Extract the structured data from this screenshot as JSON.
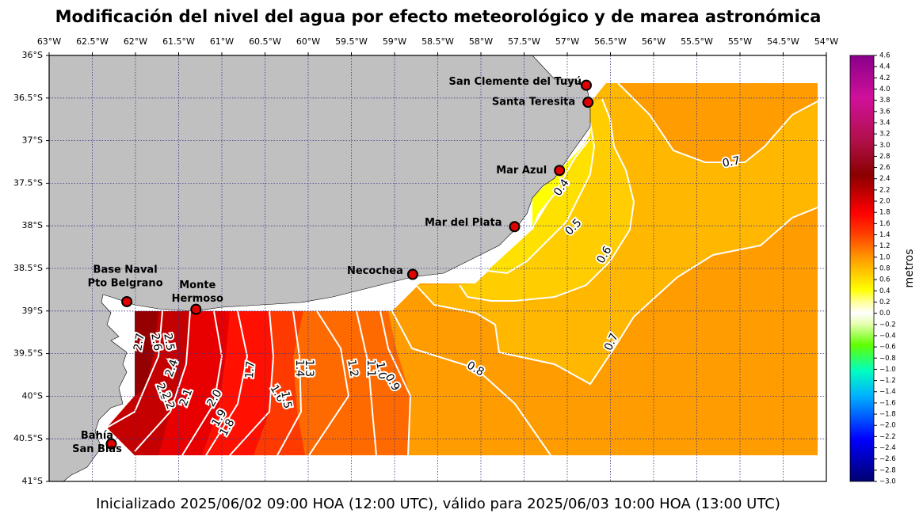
{
  "title": "Modificación del nivel del agua por efecto meteorológico y de marea astronómica",
  "footer": "Inicializado 2025/06/02 09:00 HOA (12:00 UTC), válido para 2025/06/03 10:00 HOA (13:00 UTC)",
  "map": {
    "xlim": [
      -63,
      -54
    ],
    "ylim": [
      -41,
      -36
    ],
    "xticks": [
      {
        "value": -63,
        "label": "63°W"
      },
      {
        "value": -62.5,
        "label": "62.5°W"
      },
      {
        "value": -62,
        "label": "62°W"
      },
      {
        "value": -61.5,
        "label": "61.5°W"
      },
      {
        "value": -61,
        "label": "61°W"
      },
      {
        "value": -60.5,
        "label": "60.5°W"
      },
      {
        "value": -60,
        "label": "60°W"
      },
      {
        "value": -59.5,
        "label": "59.5°W"
      },
      {
        "value": -59,
        "label": "59°W"
      },
      {
        "value": -58.5,
        "label": "58.5°W"
      },
      {
        "value": -58,
        "label": "58°W"
      },
      {
        "value": -57.5,
        "label": "57.5°W"
      },
      {
        "value": -57,
        "label": "57°W"
      },
      {
        "value": -56.5,
        "label": "56.5°W"
      },
      {
        "value": -56,
        "label": "56°W"
      },
      {
        "value": -55.5,
        "label": "55.5°W"
      },
      {
        "value": -55,
        "label": "55°W"
      },
      {
        "value": -54.5,
        "label": "54.5°W"
      },
      {
        "value": -54,
        "label": "54°W"
      }
    ],
    "yticks": [
      {
        "value": -36,
        "label": "36°S"
      },
      {
        "value": -36.5,
        "label": "36.5°S"
      },
      {
        "value": -37,
        "label": "37°S"
      },
      {
        "value": -37.5,
        "label": "37.5°S"
      },
      {
        "value": -38,
        "label": "38°S"
      },
      {
        "value": -38.5,
        "label": "38.5°S"
      },
      {
        "value": -39,
        "label": "39°S"
      },
      {
        "value": -39.5,
        "label": "39.5°S"
      },
      {
        "value": -40,
        "label": "40°S"
      },
      {
        "value": -40.5,
        "label": "40.5°S"
      },
      {
        "value": -41,
        "label": "41°S"
      }
    ],
    "grid": true,
    "cities": [
      {
        "name": [
          "San Clemente del Tuyú"
        ],
        "lon": -56.78,
        "lat": -36.35
      },
      {
        "name": [
          "Santa Teresita"
        ],
        "lon": -56.76,
        "lat": -36.55
      },
      {
        "name": [
          "Mar Azul"
        ],
        "lon": -57.09,
        "lat": -37.35
      },
      {
        "name": [
          "Mar del Plata"
        ],
        "lon": -57.61,
        "lat": -38.01
      },
      {
        "name": [
          "Necochea"
        ],
        "lon": -58.79,
        "lat": -38.57
      },
      {
        "name": [
          "Base Naval",
          "Pto Belgrano"
        ],
        "lon": -62.1,
        "lat": -38.89
      },
      {
        "name": [
          "Monte",
          "Hermoso"
        ],
        "lon": -61.3,
        "lat": -38.98
      },
      {
        "name": [
          "Bahía",
          "San Blas"
        ],
        "lon": -62.28,
        "lat": -40.56
      }
    ],
    "contour_labels": [
      2.7,
      2.6,
      2.5,
      2.4,
      2.3,
      2.2,
      2.1,
      {
        "value": 2,
        "label": "2.0"
      },
      1.9,
      1.8,
      1.7,
      1.6,
      1.5,
      1.4,
      1.3,
      1.2,
      1.1,
      {
        "value": 1,
        "label": "1.0"
      },
      0.9,
      0.8,
      0.7,
      0.7,
      0.6,
      0.5,
      0.4
    ]
  },
  "colorbar": {
    "label": "metros",
    "lim": [
      -3,
      4.6
    ],
    "ticks": [
      {
        "value": 4.6,
        "label": "4.6"
      },
      {
        "value": 4.4,
        "label": "4.4"
      },
      {
        "value": 4.2,
        "label": "4.2"
      },
      {
        "value": 4,
        "label": "4.0"
      },
      {
        "value": 3.8,
        "label": "3.8"
      },
      {
        "value": 3.6,
        "label": "3.6"
      },
      {
        "value": 3.4,
        "label": "3.4"
      },
      {
        "value": 3.2,
        "label": "3.2"
      },
      {
        "value": 3,
        "label": "3.0"
      },
      {
        "value": 2.8,
        "label": "2.8"
      },
      {
        "value": 2.6,
        "label": "2.6"
      },
      {
        "value": 2.4,
        "label": "2.4"
      },
      {
        "value": 2.2,
        "label": "2.2"
      },
      {
        "value": 2,
        "label": "2.0"
      },
      {
        "value": 1.8,
        "label": "1.8"
      },
      {
        "value": 1.6,
        "label": "1.6"
      },
      {
        "value": 1.4,
        "label": "1.4"
      },
      {
        "value": 1.2,
        "label": "1.2"
      },
      {
        "value": 1,
        "label": "1.0"
      },
      {
        "value": 0.8,
        "label": "0.8"
      },
      {
        "value": 0.6,
        "label": "0.6"
      },
      {
        "value": 0.4,
        "label": "0.4"
      },
      {
        "value": 0.2,
        "label": "0.2"
      },
      {
        "value": 0,
        "label": "0.0"
      },
      {
        "value": -0.2,
        "label": "−0.2"
      },
      {
        "value": -0.4,
        "label": "−0.4"
      },
      {
        "value": -0.6,
        "label": "−0.6"
      },
      {
        "value": -0.8,
        "label": "−0.8"
      },
      {
        "value": -1,
        "label": "−1.0"
      },
      {
        "value": -1.2,
        "label": "−1.2"
      },
      {
        "value": -1.4,
        "label": "−1.4"
      },
      {
        "value": -1.6,
        "label": "−1.6"
      },
      {
        "value": -1.8,
        "label": "−1.8"
      },
      {
        "value": -2,
        "label": "−2.0"
      },
      {
        "value": -2.2,
        "label": "−2.2"
      },
      {
        "value": -2.4,
        "label": "−2.4"
      },
      {
        "value": -2.6,
        "label": "−2.6"
      },
      {
        "value": -2.8,
        "label": "−2.8"
      },
      {
        "value": -3,
        "label": "−3.0"
      }
    ]
  }
}
